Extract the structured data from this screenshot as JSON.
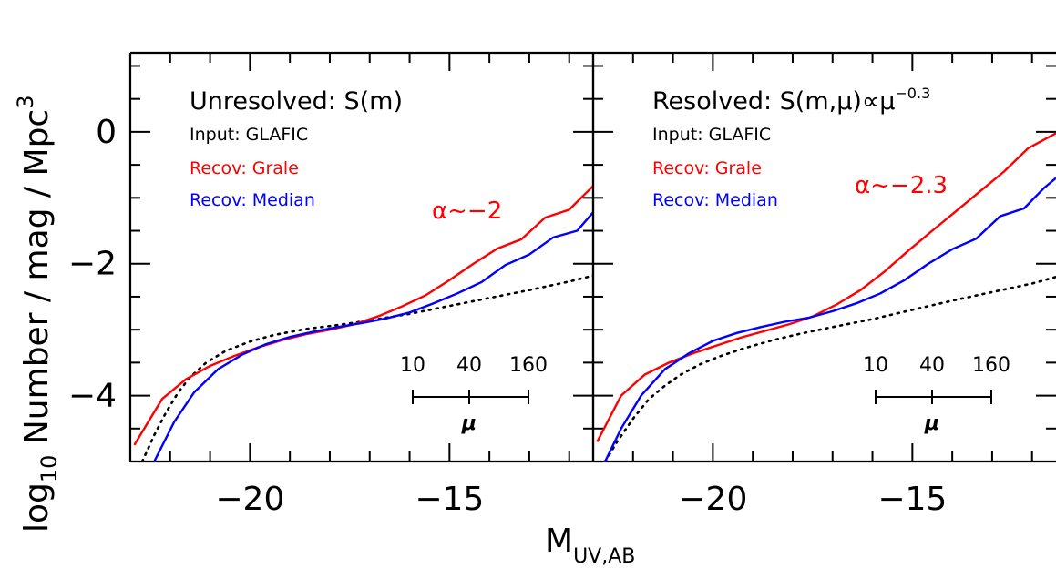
{
  "chart_data": {
    "type": "line",
    "ylabel_main": "log",
    "ylabel_sub": "10",
    "ylabel_rest": " Number / mag / Mpc",
    "ylabel_sup": "3",
    "xlabel_main": "M",
    "xlabel_sub": "UV,AB",
    "xlim": [
      -23,
      -11.4
    ],
    "ylim": [
      -5,
      1.2
    ],
    "xticks": [
      -20,
      -15
    ],
    "yticks": [
      0,
      -2,
      -4
    ],
    "xtick_labels": [
      "−20",
      "−15"
    ],
    "ytick_labels": [
      "0",
      "−2",
      "−4"
    ],
    "legend": {
      "input": "Input: GLAFIC",
      "grale": "Recov: Grale",
      "median": "Recov: Median"
    },
    "colors": {
      "input": "#000000",
      "grale": "#ff0000",
      "median": "#0000ff"
    },
    "mu_scale": {
      "labels": [
        "10",
        "40",
        "160"
      ],
      "symbol": "μ"
    },
    "panels": [
      {
        "title": "Unresolved: S(m)",
        "alpha_label": "α~−2",
        "series": [
          {
            "name": "Input: GLAFIC",
            "style": "dotted",
            "x": [
              -22.7,
              -22.4,
              -22.1,
              -21.8,
              -21.5,
              -21.1,
              -20.6,
              -20.0,
              -19.4,
              -18.6,
              -17.8,
              -17.0,
              -16.0,
              -15.0,
              -14.0,
              -13.0,
              -12.0,
              -11.4
            ],
            "y": [
              -5.0,
              -4.6,
              -4.25,
              -3.95,
              -3.72,
              -3.5,
              -3.32,
              -3.18,
              -3.08,
              -2.99,
              -2.93,
              -2.86,
              -2.76,
              -2.64,
              -2.52,
              -2.4,
              -2.27,
              -2.18
            ]
          },
          {
            "name": "Recov: Grale",
            "style": "solid",
            "x": [
              -22.9,
              -22.2,
              -21.6,
              -21.0,
              -20.4,
              -19.8,
              -19.2,
              -18.6,
              -18.0,
              -17.4,
              -16.8,
              -16.2,
              -15.6,
              -15.0,
              -14.4,
              -13.8,
              -13.2,
              -12.6,
              -12.0,
              -11.4
            ],
            "y": [
              -4.75,
              -4.05,
              -3.75,
              -3.55,
              -3.4,
              -3.27,
              -3.16,
              -3.07,
              -3.0,
              -2.92,
              -2.8,
              -2.65,
              -2.48,
              -2.25,
              -2.0,
              -1.77,
              -1.63,
              -1.3,
              -1.18,
              -0.82
            ]
          },
          {
            "name": "Recov: Median",
            "style": "solid",
            "x": [
              -22.4,
              -21.9,
              -21.4,
              -20.8,
              -20.2,
              -19.6,
              -19.0,
              -18.4,
              -17.8,
              -17.2,
              -16.6,
              -16.0,
              -15.4,
              -14.8,
              -14.2,
              -13.6,
              -13.0,
              -12.4,
              -11.8,
              -11.4
            ],
            "y": [
              -5.0,
              -4.4,
              -3.95,
              -3.6,
              -3.38,
              -3.22,
              -3.11,
              -3.03,
              -2.96,
              -2.9,
              -2.83,
              -2.74,
              -2.6,
              -2.45,
              -2.28,
              -2.02,
              -1.86,
              -1.6,
              -1.5,
              -1.22
            ]
          }
        ]
      },
      {
        "title": "Resolved: S(m,μ)∝μ",
        "title_sup": "−0.3",
        "alpha_label": "α~−2.3",
        "series": [
          {
            "name": "Input: GLAFIC",
            "style": "dotted",
            "x": [
              -22.7,
              -22.4,
              -22.0,
              -21.6,
              -21.2,
              -20.8,
              -20.3,
              -19.8,
              -19.2,
              -18.5,
              -17.8,
              -17.0,
              -16.0,
              -15.0,
              -14.0,
              -13.0,
              -12.0,
              -11.4
            ],
            "y": [
              -5.0,
              -4.7,
              -4.35,
              -4.05,
              -3.85,
              -3.68,
              -3.52,
              -3.4,
              -3.28,
              -3.16,
              -3.06,
              -2.96,
              -2.84,
              -2.7,
              -2.56,
              -2.43,
              -2.3,
              -2.2
            ]
          },
          {
            "name": "Recov: Grale",
            "style": "solid",
            "x": [
              -22.9,
              -22.3,
              -21.7,
              -21.1,
              -20.5,
              -19.9,
              -19.3,
              -18.7,
              -18.1,
              -17.5,
              -16.9,
              -16.3,
              -15.7,
              -15.1,
              -14.5,
              -13.9,
              -13.3,
              -12.7,
              -12.1,
              -11.4
            ],
            "y": [
              -4.7,
              -4.0,
              -3.68,
              -3.5,
              -3.36,
              -3.24,
              -3.12,
              -3.02,
              -2.92,
              -2.8,
              -2.62,
              -2.4,
              -2.12,
              -1.8,
              -1.5,
              -1.2,
              -0.9,
              -0.6,
              -0.25,
              -0.02
            ]
          },
          {
            "name": "Recov: Median",
            "style": "solid",
            "x": [
              -22.7,
              -22.3,
              -21.8,
              -21.2,
              -20.6,
              -20.0,
              -19.4,
              -18.8,
              -18.2,
              -17.6,
              -17.0,
              -16.4,
              -15.8,
              -15.2,
              -14.6,
              -14.0,
              -13.4,
              -12.8,
              -12.2,
              -11.7,
              -11.4
            ],
            "y": [
              -5.0,
              -4.5,
              -4.0,
              -3.6,
              -3.36,
              -3.17,
              -3.05,
              -2.96,
              -2.88,
              -2.82,
              -2.72,
              -2.6,
              -2.45,
              -2.25,
              -2.0,
              -1.78,
              -1.62,
              -1.28,
              -1.16,
              -0.85,
              -0.7
            ]
          }
        ]
      }
    ]
  }
}
